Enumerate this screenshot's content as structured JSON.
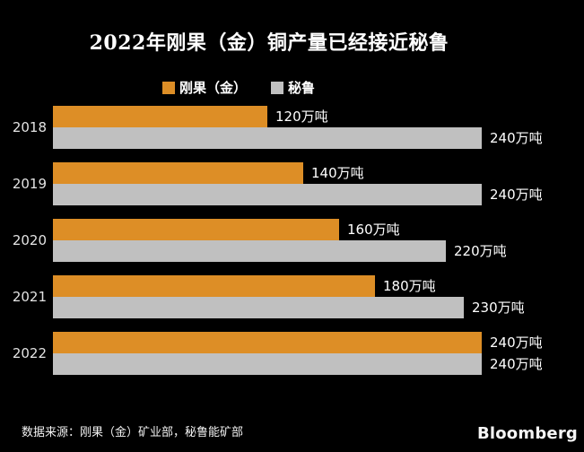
{
  "title": "2022年刚果（金）铜产量已经接近秘鲁",
  "legend": {
    "items": [
      {
        "label": "刚果（金）",
        "color": "#DD8E26"
      },
      {
        "label": "秘鲁",
        "color": "#C0C0C0"
      }
    ]
  },
  "source": "数据来源：刚果（金）矿业部，秘鲁能矿部",
  "brand": "Bloomberg",
  "colors": {
    "background": "#000000",
    "congo_orange": "#DD8E26",
    "peru_gray": "#C0C0C0",
    "title_text": "#FFFFFF",
    "axis_text": "#E3E3E3",
    "value_text": "#FFFFFF"
  },
  "chart_data": {
    "type": "bar",
    "orientation": "horizontal",
    "title": "2022年刚果（金）铜产量已经接近秘鲁",
    "categories": [
      "2018",
      "2019",
      "2020",
      "2021",
      "2022"
    ],
    "series": [
      {
        "name": "刚果（金）",
        "color": "#DD8E26",
        "values": [
          120,
          140,
          160,
          180,
          240
        ],
        "labels": [
          "120万吨",
          "140万吨",
          "160万吨",
          "180万吨",
          "240万吨"
        ]
      },
      {
        "name": "秘鲁",
        "color": "#C0C0C0",
        "values": [
          240,
          240,
          220,
          230,
          240
        ],
        "labels": [
          "240万吨",
          "240万吨",
          "220万吨",
          "230万吨",
          "240万吨"
        ]
      }
    ],
    "unit": "万吨",
    "xlim": [
      0,
      240
    ],
    "grid": false,
    "legend_position": "top-center",
    "value_labels": "outside-end"
  }
}
